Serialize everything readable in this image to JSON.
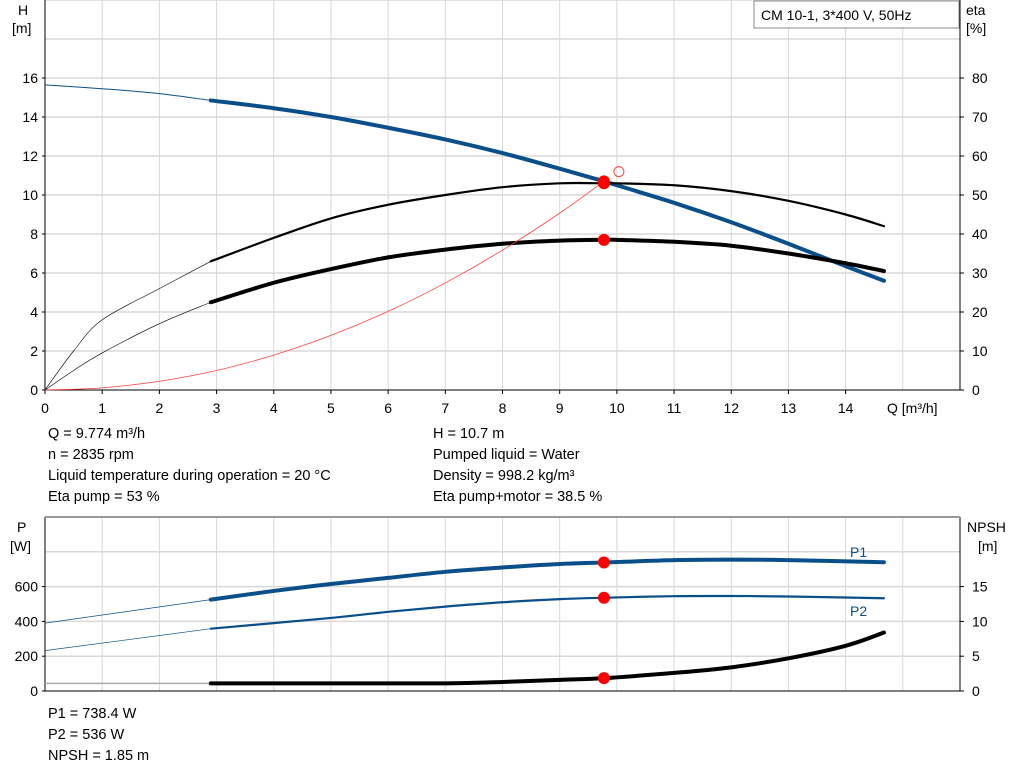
{
  "legend_box": "CM 10-1, 3*400 V, 50Hz",
  "colors": {
    "head": "#0a4f8a",
    "eta": "#000000",
    "system": "#ff4040",
    "power": "#0a4f8a",
    "npsh": "#000000",
    "duty_point": "#ff0000",
    "grid": "#d8d8d8"
  },
  "chart_data": [
    {
      "type": "line",
      "xlabel": "Q [m³/h]",
      "ylabel_unit_top": "H",
      "ylabel_unit_bottom": "[m]",
      "y2label_top": "eta",
      "y2label_bottom": "[%]",
      "xlim": [
        0,
        16
      ],
      "ylim": [
        0,
        20
      ],
      "y2lim": [
        0,
        100
      ],
      "xticks": [
        0,
        1,
        2,
        3,
        4,
        5,
        6,
        7,
        8,
        9,
        10,
        11,
        12,
        13,
        14
      ],
      "yticks": [
        0,
        2,
        4,
        6,
        8,
        10,
        12,
        14,
        16
      ],
      "y2ticks": [
        0,
        10,
        20,
        30,
        40,
        50,
        60,
        70,
        80
      ],
      "grid": true,
      "series": [
        {
          "key": "head",
          "axis": "left",
          "x": [
            0,
            1,
            2,
            2.9,
            4,
            5,
            6,
            7,
            8,
            9,
            9.774,
            10,
            11,
            12,
            13,
            14,
            14.67
          ],
          "y": [
            15.65,
            15.45,
            15.2,
            14.85,
            14.45,
            14.0,
            13.45,
            12.85,
            12.15,
            11.35,
            10.7,
            10.5,
            9.6,
            8.6,
            7.5,
            6.35,
            5.6
          ],
          "thin_until": 2.9
        },
        {
          "key": "eta_pump",
          "axis": "right",
          "x": [
            0,
            0.5,
            1,
            2,
            2.9,
            4,
            5,
            6,
            7,
            8,
            9,
            9.774,
            10,
            11,
            12,
            13,
            14,
            14.67
          ],
          "y": [
            0,
            10,
            18,
            26,
            33,
            39,
            44,
            47.5,
            50,
            52,
            53,
            53,
            53,
            52.5,
            51,
            48.5,
            45,
            42
          ],
          "thin_until": 2.9
        },
        {
          "key": "eta_pump_motor",
          "axis": "right",
          "x": [
            0,
            0.5,
            1,
            2,
            2.9,
            4,
            5,
            6,
            7,
            8,
            9,
            9.774,
            10,
            11,
            12,
            13,
            14,
            14.67
          ],
          "y": [
            0,
            5,
            9.5,
            17,
            22.5,
            27.5,
            31,
            34,
            36,
            37.5,
            38.3,
            38.5,
            38.5,
            38,
            37,
            35,
            32.5,
            30.5
          ],
          "thin_until": 2.9
        },
        {
          "key": "system",
          "axis": "left",
          "x": [
            0,
            1,
            2,
            3,
            4,
            5,
            6,
            7,
            8,
            9,
            9.774
          ],
          "y": [
            0,
            0.11,
            0.45,
            1.0,
            1.79,
            2.8,
            4.03,
            5.49,
            7.17,
            9.07,
            10.7
          ]
        }
      ],
      "duty_points": [
        {
          "axis": "left",
          "x": 9.774,
          "y": 10.7
        },
        {
          "axis": "right",
          "x": 9.774,
          "y": 53
        },
        {
          "axis": "right",
          "x": 9.774,
          "y": 38.5
        }
      ],
      "open_marker": {
        "axis": "left",
        "x": 10.0,
        "y": 11.2
      }
    },
    {
      "type": "line",
      "ylabel_unit_top": "P",
      "ylabel_unit_bottom": "[W]",
      "y2label_top": "NPSH",
      "y2label_bottom": "[m]",
      "xlim": [
        0,
        16
      ],
      "ylim": [
        0,
        1000
      ],
      "y2lim": [
        0,
        25
      ],
      "yticks": [
        0,
        200,
        400,
        600
      ],
      "y2ticks": [
        0,
        5,
        10,
        15
      ],
      "grid": true,
      "series": [
        {
          "key": "P1",
          "name": "P1",
          "axis": "left",
          "x": [
            0,
            2.9,
            4,
            5,
            6,
            7,
            8,
            9,
            9.774,
            11,
            12,
            13,
            14.67
          ],
          "y": [
            390,
            525,
            575,
            615,
            650,
            685,
            710,
            730,
            738.4,
            752,
            755,
            752,
            740
          ],
          "thin_until": 2.9
        },
        {
          "key": "P2",
          "name": "P2",
          "axis": "left",
          "x": [
            0,
            2.9,
            5,
            6,
            7,
            8,
            9,
            9.774,
            11,
            12,
            13,
            14.67
          ],
          "y": [
            232,
            358,
            420,
            455,
            485,
            510,
            528,
            536,
            545,
            546,
            543,
            533
          ],
          "thin_until": 2.9
        },
        {
          "key": "NPSH",
          "axis": "right",
          "x": [
            0,
            2.9,
            5,
            7,
            8,
            9,
            9.774,
            11,
            12,
            13,
            14,
            14.67
          ],
          "y": [
            1.1,
            1.1,
            1.1,
            1.1,
            1.3,
            1.6,
            1.85,
            2.6,
            3.4,
            4.7,
            6.5,
            8.4
          ],
          "thin_until": 2.9
        }
      ],
      "duty_points": [
        {
          "axis": "left",
          "x": 9.774,
          "y": 738.4
        },
        {
          "axis": "left",
          "x": 9.774,
          "y": 536
        },
        {
          "axis": "right",
          "x": 9.774,
          "y": 1.85
        }
      ]
    }
  ],
  "info_top_left": [
    "Q = 9.774 m³/h",
    "n = 2835 rpm",
    "Liquid temperature during operation = 20 °C",
    "Eta pump = 53 %"
  ],
  "info_top_right": [
    "H = 10.7 m",
    "Pumped liquid = Water",
    "Density = 998.2 kg/m³",
    "Eta pump+motor = 38.5 %"
  ],
  "info_bottom": [
    "P1 = 738.4 W",
    "P2 = 536 W",
    "NPSH = 1.85 m"
  ]
}
